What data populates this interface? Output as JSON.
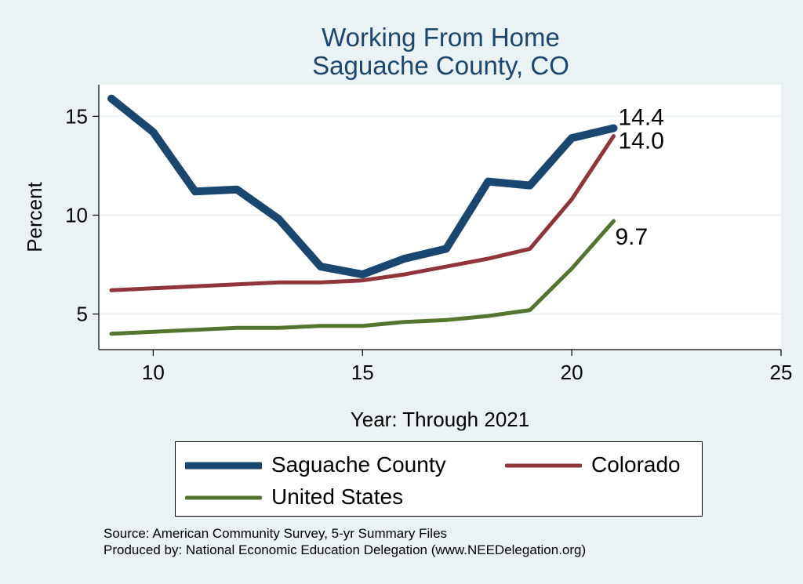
{
  "chart_data": {
    "type": "line",
    "title": [
      "Working From Home",
      "Saguache County, CO"
    ],
    "xlabel": "Year: Through 2021",
    "ylabel": "Percent",
    "xlim": [
      8.7,
      25
    ],
    "ylim": [
      3.2,
      16.6
    ],
    "xticks": [
      10,
      15,
      20,
      25
    ],
    "yticks": [
      5,
      10,
      15
    ],
    "grid": true,
    "legend_position": "bottom",
    "x": [
      9,
      10,
      11,
      12,
      13,
      14,
      15,
      16,
      17,
      18,
      19,
      20,
      21
    ],
    "series": [
      {
        "name": "Saguache County",
        "color": "#1a476f",
        "values": [
          15.9,
          14.2,
          11.2,
          11.3,
          9.8,
          7.4,
          7.0,
          7.8,
          8.3,
          11.7,
          11.5,
          13.9,
          14.4
        ],
        "end_label": "14.4"
      },
      {
        "name": "Colorado",
        "color": "#90353b",
        "values": [
          6.2,
          6.3,
          6.4,
          6.5,
          6.6,
          6.6,
          6.7,
          7.0,
          7.4,
          7.8,
          8.3,
          10.8,
          14.0
        ],
        "end_label": "14.0"
      },
      {
        "name": "United States",
        "color": "#55752f",
        "values": [
          4.0,
          4.1,
          4.2,
          4.3,
          4.3,
          4.4,
          4.4,
          4.6,
          4.7,
          4.9,
          5.2,
          7.3,
          9.7
        ],
        "end_label": "9.7"
      }
    ]
  },
  "notes": {
    "source": "Source: American Community Survey, 5-yr Summary Files",
    "produced": "Produced by: National Economic Education Delegation (www.NEEDelegation.org)"
  }
}
